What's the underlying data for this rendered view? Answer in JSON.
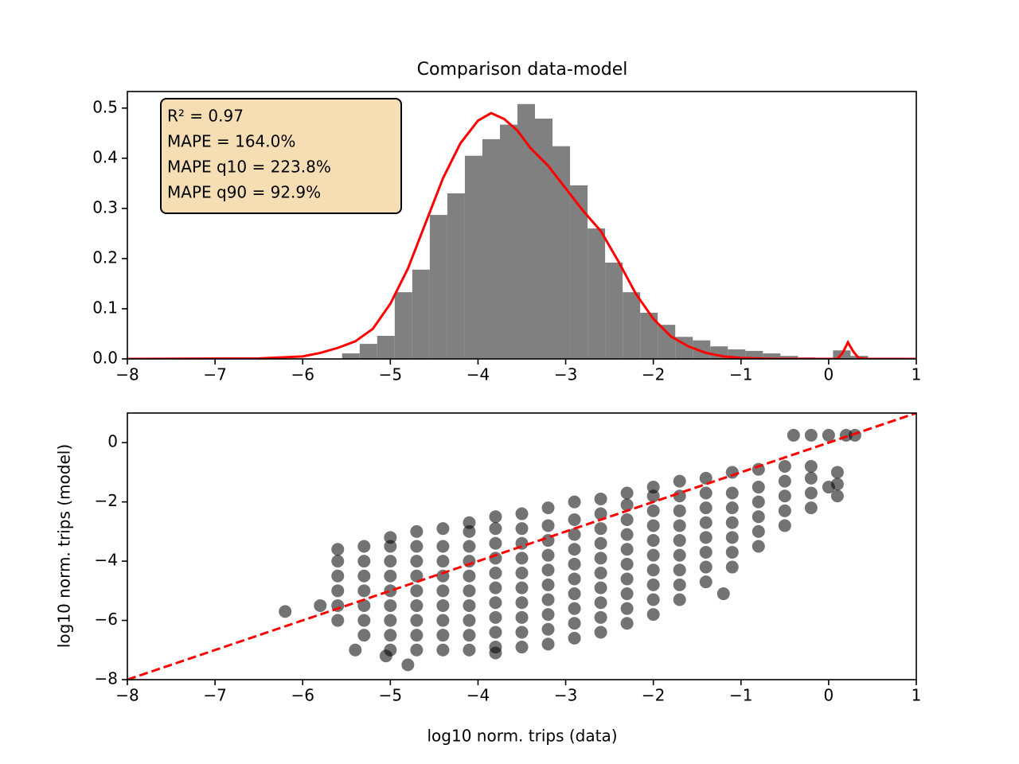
{
  "chart_data": [
    {
      "type": "histogram",
      "title": "Comparison data-model",
      "bins": [
        -5.55,
        -5.35,
        -5.15,
        -4.95,
        -4.75,
        -4.55,
        -4.35,
        -4.15,
        -3.95,
        -3.75,
        -3.55,
        -3.35,
        -3.15,
        -2.95,
        -2.75,
        -2.55,
        -2.35,
        -2.15,
        -1.95,
        -1.75,
        -1.55,
        -1.35,
        -1.15,
        -0.95,
        -0.75,
        -0.55,
        -0.35,
        -0.15,
        0.05,
        0.25,
        0.45
      ],
      "values": [
        0.011,
        0.03,
        0.046,
        0.133,
        0.178,
        0.287,
        0.33,
        0.405,
        0.438,
        0.467,
        0.508,
        0.479,
        0.424,
        0.346,
        0.26,
        0.192,
        0.133,
        0.092,
        0.068,
        0.044,
        0.037,
        0.025,
        0.019,
        0.016,
        0.011,
        0.006,
        0.003,
        0,
        0.017,
        0.006
      ],
      "color": "#808080",
      "line": {
        "x": [
          -8,
          -6.5,
          -6,
          -5.8,
          -5.6,
          -5.4,
          -5.2,
          -5,
          -4.8,
          -4.6,
          -4.4,
          -4.2,
          -4,
          -3.85,
          -3.7,
          -3.55,
          -3.4,
          -3.2,
          -3,
          -2.8,
          -2.6,
          -2.4,
          -2.2,
          -2,
          -1.8,
          -1.6,
          -1.4,
          -1.2,
          -1,
          -0.6,
          0.1,
          0.16,
          0.22,
          0.28,
          0.34,
          0.45,
          1
        ],
        "values": [
          0,
          0.001,
          0.005,
          0.012,
          0.022,
          0.035,
          0.06,
          0.11,
          0.18,
          0.27,
          0.36,
          0.43,
          0.475,
          0.49,
          0.478,
          0.455,
          0.42,
          0.385,
          0.34,
          0.295,
          0.255,
          0.195,
          0.13,
          0.08,
          0.045,
          0.025,
          0.012,
          0.005,
          0.002,
          0,
          0,
          0.012,
          0.033,
          0.015,
          0.002,
          0,
          0
        ],
        "color": "#ff0000"
      },
      "annotation": [
        "R² =  0.97",
        "MAPE = 164.0%",
        "MAPE q10 = 223.8%",
        "MAPE q90 = 92.9%"
      ],
      "xlim": [
        -8,
        1
      ],
      "ylim": [
        0,
        0.533
      ],
      "xticks": [
        {
          "value": -8,
          "label": "−8"
        },
        {
          "value": -7,
          "label": "−7"
        },
        {
          "value": -6,
          "label": "−6"
        },
        {
          "value": -5,
          "label": "−5"
        },
        {
          "value": -4,
          "label": "−4"
        },
        {
          "value": -3,
          "label": "−3"
        },
        {
          "value": -2,
          "label": "−2"
        },
        {
          "value": -1,
          "label": "−1"
        },
        0,
        1
      ],
      "yticks": [
        {
          "value": 0,
          "label": "0.0"
        },
        0.1,
        0.2,
        0.3,
        0.4,
        0.5
      ]
    },
    {
      "type": "scatter",
      "xlabel": "log10 norm. trips (data)",
      "ylabel": "log10 norm. trips (model)",
      "x": [
        -5.6,
        -5.6,
        -5.6,
        -5.6,
        -5.6,
        -5.6,
        -5.3,
        -5.3,
        -5.3,
        -5.3,
        -5.3,
        -5.3,
        -5.3,
        -5,
        -5,
        -5,
        -5,
        -5,
        -5,
        -5,
        -5,
        -5,
        -4.7,
        -4.7,
        -4.7,
        -4.7,
        -4.7,
        -4.7,
        -4.7,
        -4.7,
        -4.7,
        -4.4,
        -4.4,
        -4.4,
        -4.4,
        -4.4,
        -4.4,
        -4.4,
        -4.4,
        -4.4,
        -4.1,
        -4.1,
        -4.1,
        -4.1,
        -4.1,
        -4.1,
        -4.1,
        -4.1,
        -4.1,
        -4.1,
        -3.8,
        -3.8,
        -3.8,
        -3.8,
        -3.8,
        -3.8,
        -3.8,
        -3.8,
        -3.8,
        -3.8,
        -3.5,
        -3.5,
        -3.5,
        -3.5,
        -3.5,
        -3.5,
        -3.5,
        -3.5,
        -3.5,
        -3.5,
        -3.2,
        -3.2,
        -3.2,
        -3.2,
        -3.2,
        -3.2,
        -3.2,
        -3.2,
        -3.2,
        -3.2,
        -2.9,
        -2.9,
        -2.9,
        -2.9,
        -2.9,
        -2.9,
        -2.9,
        -2.9,
        -2.9,
        -2.9,
        -2.6,
        -2.6,
        -2.6,
        -2.6,
        -2.6,
        -2.6,
        -2.6,
        -2.6,
        -2.6,
        -2.6,
        -2.3,
        -2.3,
        -2.3,
        -2.3,
        -2.3,
        -2.3,
        -2.3,
        -2.3,
        -2.3,
        -2.3,
        -2,
        -2,
        -2,
        -2,
        -2,
        -2,
        -2,
        -2,
        -2,
        -2,
        -1.7,
        -1.7,
        -1.7,
        -1.7,
        -1.7,
        -1.7,
        -1.7,
        -1.7,
        -1.7,
        -1.4,
        -1.4,
        -1.4,
        -1.4,
        -1.4,
        -1.4,
        -1.4,
        -1.4,
        -1.1,
        -1.1,
        -1.1,
        -1.1,
        -1.1,
        -1.1,
        -1.1,
        -0.8,
        -0.8,
        -0.8,
        -0.8,
        -0.8,
        -0.8,
        -0.5,
        -0.5,
        -0.5,
        -0.5,
        -0.5,
        -0.2,
        -0.2,
        -0.2,
        -0.2,
        0.1,
        0.1,
        0.1,
        -0.4,
        -0.2,
        0,
        0.2,
        0.3,
        -6.2,
        -5.8,
        -5.4,
        -5.05,
        -4.8,
        -3.8,
        -1.2,
        0
      ],
      "values": [
        -6,
        -5.5,
        -5,
        -4.5,
        -4,
        -3.6,
        -6.5,
        -6,
        -5.5,
        -5,
        -4.5,
        -4,
        -3.5,
        -7,
        -6.5,
        -6,
        -5.5,
        -5,
        -4.5,
        -4,
        -3.5,
        -3.2,
        -7,
        -6.5,
        -6,
        -5.5,
        -5,
        -4.5,
        -4,
        -3.5,
        -3,
        -7,
        -6.5,
        -6,
        -5.5,
        -5,
        -4.5,
        -4,
        -3.5,
        -2.9,
        -7,
        -6.5,
        -6,
        -5.5,
        -5,
        -4.5,
        -4,
        -3.5,
        -3,
        -2.7,
        -6.9,
        -6.4,
        -5.9,
        -5.4,
        -4.9,
        -4.4,
        -3.9,
        -3.4,
        -2.9,
        -2.5,
        -6.9,
        -6.4,
        -5.9,
        -5.4,
        -4.9,
        -4.4,
        -3.9,
        -3.4,
        -2.9,
        -2.4,
        -6.8,
        -6.3,
        -5.8,
        -5.3,
        -4.8,
        -4.3,
        -3.8,
        -3.3,
        -2.8,
        -2.2,
        -6.6,
        -6.1,
        -5.6,
        -5.1,
        -4.6,
        -4.1,
        -3.6,
        -3.1,
        -2.6,
        -2,
        -6.4,
        -5.9,
        -5.4,
        -4.9,
        -4.4,
        -3.9,
        -3.4,
        -2.9,
        -2.4,
        -1.9,
        -6.1,
        -5.6,
        -5.1,
        -4.6,
        -4.1,
        -3.6,
        -3.1,
        -2.6,
        -2.1,
        -1.7,
        -5.8,
        -5.3,
        -4.8,
        -4.3,
        -3.8,
        -3.3,
        -2.8,
        -2.3,
        -1.8,
        -1.5,
        -5.3,
        -4.8,
        -4.3,
        -3.8,
        -3.3,
        -2.8,
        -2.3,
        -1.8,
        -1.3,
        -4.7,
        -4.2,
        -3.7,
        -3.2,
        -2.7,
        -2.2,
        -1.7,
        -1.2,
        -4.2,
        -3.7,
        -3.2,
        -2.7,
        -2.2,
        -1.7,
        -1,
        -3.5,
        -3,
        -2.5,
        -2,
        -1.5,
        -0.9,
        -2.8,
        -2.3,
        -1.8,
        -1.3,
        -0.8,
        -2.2,
        -1.7,
        -1.2,
        -0.8,
        -1.8,
        -1.4,
        -1,
        0.25,
        0.25,
        0.25,
        0.25,
        0.25,
        -5.7,
        -5.5,
        -7,
        -7.2,
        -7.5,
        -7.1,
        -5.1,
        -1.5
      ],
      "color": "#000000",
      "reference_line": {
        "x": [
          -8,
          1
        ],
        "values": [
          -8,
          1
        ],
        "color": "#ff0000"
      },
      "xlim": [
        -8,
        1
      ],
      "ylim": [
        -8,
        1
      ],
      "xticks": [
        {
          "value": -8,
          "label": "−8"
        },
        {
          "value": -7,
          "label": "−7"
        },
        {
          "value": -6,
          "label": "−6"
        },
        {
          "value": -5,
          "label": "−5"
        },
        {
          "value": -4,
          "label": "−4"
        },
        {
          "value": -3,
          "label": "−3"
        },
        {
          "value": -2,
          "label": "−2"
        },
        {
          "value": -1,
          "label": "−1"
        },
        0,
        1
      ],
      "yticks": [
        {
          "value": -8,
          "label": "−8"
        },
        {
          "value": -6,
          "label": "−6"
        },
        {
          "value": -4,
          "label": "−4"
        },
        {
          "value": -2,
          "label": "−2"
        },
        0
      ]
    }
  ]
}
